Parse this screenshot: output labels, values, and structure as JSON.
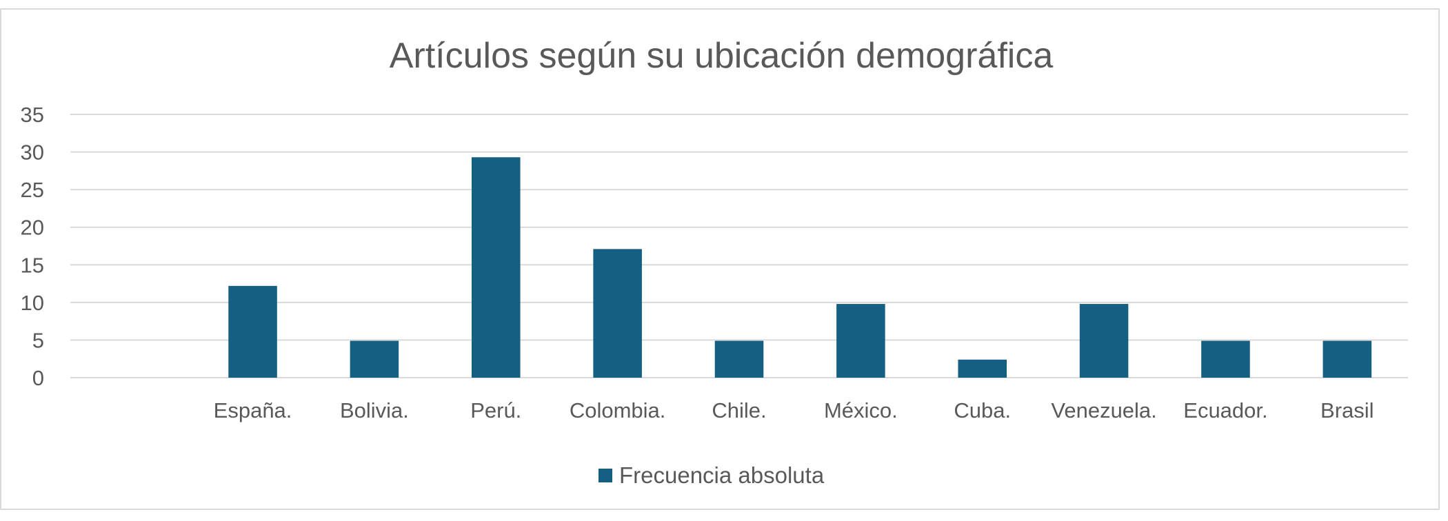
{
  "chart_data": {
    "type": "bar",
    "title": "Artículos según su ubicación demográfica",
    "categories": [
      "",
      "España.",
      "Bolivia.",
      "Perú.",
      "Colombia.",
      "Chile.",
      "México.",
      "Cuba.",
      "Venezuela.",
      "Ecuador.",
      "Brasil"
    ],
    "series": [
      {
        "name": "Frecuencia absoluta",
        "color": "#156082",
        "values": [
          null,
          12.2,
          4.9,
          29.3,
          17.1,
          4.9,
          9.8,
          2.4,
          9.8,
          4.9,
          4.9
        ]
      }
    ],
    "ylim": [
      0,
      35
    ],
    "yticks": [
      0,
      5,
      10,
      15,
      20,
      25,
      30,
      35
    ],
    "grid": true,
    "legend_position": "bottom"
  }
}
